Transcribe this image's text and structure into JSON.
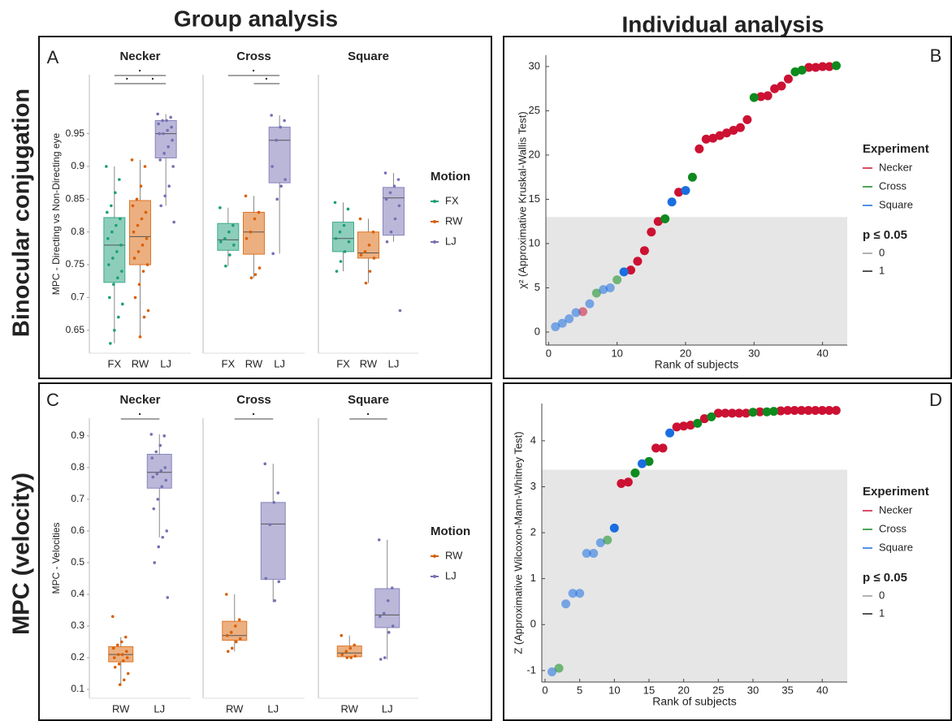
{
  "column_titles": [
    "Group analysis",
    "Individual analysis"
  ],
  "row_titles": [
    "Binocular conjugation",
    "MPC (velocity)"
  ],
  "chart_data": [
    {
      "type": "boxplot",
      "panel_label": "A",
      "ylabel": "MPC - Directing vs Non-Directing eye",
      "ylim": [
        0.615,
        1.04
      ],
      "yticks": [
        0.65,
        0.7,
        0.75,
        0.8,
        0.85,
        0.9,
        0.95
      ],
      "legend_title": "Motion",
      "series": [
        {
          "name": "FX",
          "color": "#1b9e77"
        },
        {
          "name": "RW",
          "color": "#d95f02"
        },
        {
          "name": "LJ",
          "color": "#7570b3"
        }
      ],
      "comparison_label": "·",
      "groups": [
        {
          "title": "Necker",
          "categories": [
            "FX",
            "RW",
            "LJ"
          ],
          "comparisons": [
            [
              "FX",
              "LJ"
            ],
            [
              "FX",
              "RW"
            ],
            [
              "RW",
              "LJ"
            ]
          ],
          "boxes": [
            {
              "whislo": 0.63,
              "q1": 0.723,
              "med": 0.78,
              "q3": 0.822,
              "whishi": 0.9,
              "points": [
                0.9,
                0.88,
                0.86,
                0.84,
                0.83,
                0.82,
                0.81,
                0.8,
                0.79,
                0.78,
                0.77,
                0.76,
                0.75,
                0.74,
                0.73,
                0.72,
                0.7,
                0.69,
                0.67,
                0.65,
                0.63
              ]
            },
            {
              "whislo": 0.64,
              "q1": 0.75,
              "med": 0.793,
              "q3": 0.848,
              "whishi": 0.91,
              "points": [
                0.91,
                0.9,
                0.87,
                0.85,
                0.84,
                0.83,
                0.82,
                0.81,
                0.8,
                0.79,
                0.78,
                0.77,
                0.76,
                0.75,
                0.74,
                0.72,
                0.7,
                0.68,
                0.67,
                0.64
              ]
            },
            {
              "whislo": 0.84,
              "q1": 0.913,
              "med": 0.95,
              "q3": 0.97,
              "whishi": 0.98,
              "points": [
                0.98,
                0.975,
                0.97,
                0.97,
                0.965,
                0.96,
                0.955,
                0.95,
                0.95,
                0.94,
                0.93,
                0.92,
                0.91,
                0.9,
                0.87,
                0.855,
                0.84,
                0.815
              ]
            }
          ]
        },
        {
          "title": "Cross",
          "categories": [
            "FX",
            "RW",
            "LJ"
          ],
          "comparisons": [
            [
              "FX",
              "LJ"
            ],
            [
              "RW",
              "LJ"
            ]
          ],
          "boxes": [
            {
              "whislo": 0.748,
              "q1": 0.772,
              "med": 0.788,
              "q3": 0.813,
              "whishi": 0.837,
              "points": [
                0.837,
                0.81,
                0.8,
                0.79,
                0.785,
                0.78,
                0.765,
                0.748
              ]
            },
            {
              "whislo": 0.73,
              "q1": 0.766,
              "med": 0.8,
              "q3": 0.83,
              "whishi": 0.855,
              "points": [
                0.855,
                0.83,
                0.82,
                0.8,
                0.79,
                0.745,
                0.735,
                0.73
              ]
            },
            {
              "whislo": 0.767,
              "q1": 0.875,
              "med": 0.94,
              "q3": 0.96,
              "whishi": 0.978,
              "points": [
                0.978,
                0.97,
                0.96,
                0.94,
                0.9,
                0.88,
                0.87,
                0.85,
                0.767
              ]
            }
          ]
        },
        {
          "title": "Square",
          "categories": [
            "FX",
            "RW",
            "LJ"
          ],
          "comparisons": [],
          "boxes": [
            {
              "whislo": 0.74,
              "q1": 0.77,
              "med": 0.79,
              "q3": 0.815,
              "whishi": 0.845,
              "points": [
                0.845,
                0.835,
                0.81,
                0.8,
                0.79,
                0.785,
                0.77,
                0.755,
                0.74
              ]
            },
            {
              "whislo": 0.722,
              "q1": 0.76,
              "med": 0.768,
              "q3": 0.8,
              "whishi": 0.82,
              "points": [
                0.82,
                0.8,
                0.78,
                0.77,
                0.765,
                0.76,
                0.74,
                0.722
              ]
            },
            {
              "whislo": 0.785,
              "q1": 0.795,
              "med": 0.852,
              "q3": 0.868,
              "whishi": 0.89,
              "points": [
                0.89,
                0.88,
                0.87,
                0.86,
                0.85,
                0.84,
                0.82,
                0.8,
                0.785,
                0.68
              ]
            }
          ]
        }
      ]
    },
    {
      "type": "scatter",
      "panel_label": "B",
      "xlabel": "Rank of subjects",
      "ylabel": "χ² (Approximative Kruskal-Wallis Test)",
      "xlim": [
        -0.4,
        43.6
      ],
      "xticks": [
        0,
        10,
        20,
        30,
        40
      ],
      "ylim": [
        -1.47,
        31.28
      ],
      "yticks": [
        0,
        5,
        10,
        15,
        20,
        25,
        30
      ],
      "threshold": 13,
      "legend_title": "Experiment",
      "sig_legend_title": "p ≤ 0.05",
      "sig_levels": [
        0,
        1
      ],
      "series": [
        {
          "name": "Necker",
          "color": "#cc1133",
          "x": [
            5,
            12,
            13,
            14,
            15,
            16,
            19,
            22,
            23,
            24,
            25,
            26,
            27,
            28,
            29,
            31,
            32,
            33,
            34,
            35,
            38,
            39,
            40,
            41
          ],
          "values": [
            2.3,
            7.0,
            8.0,
            9.2,
            11.3,
            12.5,
            15.8,
            20.7,
            21.8,
            21.9,
            22.2,
            22.5,
            22.8,
            23.1,
            24.0,
            26.6,
            26.7,
            27.5,
            27.8,
            28.6,
            29.9,
            29.9,
            30.0,
            30.0
          ],
          "significant": [
            0,
            1,
            1,
            1,
            1,
            1,
            1,
            1,
            1,
            1,
            1,
            1,
            1,
            1,
            1,
            1,
            1,
            1,
            1,
            1,
            1,
            1,
            1,
            1
          ]
        },
        {
          "name": "Cross",
          "color": "#0e8a1e",
          "x": [
            7,
            10,
            17,
            21,
            30,
            36,
            37,
            42
          ],
          "values": [
            4.4,
            5.9,
            12.8,
            17.5,
            26.5,
            29.4,
            29.6,
            30.1
          ],
          "significant": [
            0,
            0,
            1,
            1,
            1,
            1,
            1,
            1
          ]
        },
        {
          "name": "Square",
          "color": "#1a6ee0",
          "x": [
            1,
            2,
            3,
            4,
            6,
            8,
            9,
            11,
            18,
            20
          ],
          "values": [
            0.6,
            1.0,
            1.5,
            2.2,
            3.2,
            4.8,
            5.0,
            6.8,
            14.7,
            16.0
          ],
          "significant": [
            0,
            0,
            0,
            0,
            0,
            0,
            0,
            1,
            1,
            1
          ]
        }
      ]
    },
    {
      "type": "boxplot",
      "panel_label": "C",
      "ylabel": "MPC - Velocities",
      "ylim": [
        0.072,
        0.956
      ],
      "yticks": [
        0.1,
        0.2,
        0.3,
        0.4,
        0.5,
        0.6,
        0.7,
        0.8,
        0.9
      ],
      "legend_title": "Motion",
      "series": [
        {
          "name": "RW",
          "color": "#d95f02"
        },
        {
          "name": "LJ",
          "color": "#7570b3"
        }
      ],
      "comparison_label": "·",
      "groups": [
        {
          "title": "Necker",
          "categories": [
            "RW",
            "LJ"
          ],
          "comparisons": [
            [
              "RW",
              "LJ"
            ]
          ],
          "boxes": [
            {
              "whislo": 0.115,
              "q1": 0.187,
              "med": 0.21,
              "q3": 0.235,
              "whishi": 0.265,
              "points": [
                0.33,
                0.265,
                0.25,
                0.24,
                0.23,
                0.22,
                0.21,
                0.21,
                0.2,
                0.2,
                0.19,
                0.18,
                0.17,
                0.15,
                0.13,
                0.115
              ]
            },
            {
              "whislo": 0.58,
              "q1": 0.735,
              "med": 0.785,
              "q3": 0.842,
              "whishi": 0.905,
              "points": [
                0.905,
                0.9,
                0.87,
                0.85,
                0.83,
                0.8,
                0.79,
                0.78,
                0.77,
                0.76,
                0.74,
                0.7,
                0.67,
                0.6,
                0.58,
                0.55,
                0.5,
                0.39
              ]
            }
          ]
        },
        {
          "title": "Cross",
          "categories": [
            "RW",
            "LJ"
          ],
          "comparisons": [
            [
              "RW",
              "LJ"
            ]
          ],
          "boxes": [
            {
              "whislo": 0.22,
              "q1": 0.255,
              "med": 0.27,
              "q3": 0.315,
              "whishi": 0.4,
              "points": [
                0.4,
                0.32,
                0.3,
                0.28,
                0.27,
                0.26,
                0.25,
                0.23,
                0.22
              ]
            },
            {
              "whislo": 0.375,
              "q1": 0.447,
              "med": 0.622,
              "q3": 0.69,
              "whishi": 0.812,
              "points": [
                0.812,
                0.72,
                0.69,
                0.62,
                0.45,
                0.44,
                0.38
              ]
            }
          ]
        },
        {
          "title": "Square",
          "categories": [
            "RW",
            "LJ"
          ],
          "comparisons": [
            [
              "RW",
              "LJ"
            ]
          ],
          "boxes": [
            {
              "whislo": 0.2,
              "q1": 0.203,
              "med": 0.215,
              "q3": 0.237,
              "whishi": 0.27,
              "points": [
                0.27,
                0.24,
                0.23,
                0.22,
                0.21,
                0.205,
                0.2,
                0.2
              ]
            },
            {
              "whislo": 0.195,
              "q1": 0.295,
              "med": 0.335,
              "q3": 0.418,
              "whishi": 0.572,
              "points": [
                0.572,
                0.42,
                0.38,
                0.34,
                0.33,
                0.3,
                0.28,
                0.2,
                0.195
              ]
            }
          ]
        }
      ]
    },
    {
      "type": "scatter",
      "panel_label": "D",
      "xlabel": "Rank of subjects",
      "ylabel": "Z (Approximative Wilcoxon-Mann-Whitney Test)",
      "xlim": [
        -0.47,
        43.6
      ],
      "xticks": [
        0,
        5,
        10,
        15,
        20,
        25,
        30,
        35,
        40
      ],
      "ylim": [
        -1.25,
        4.81
      ],
      "yticks": [
        -1,
        0,
        1,
        2,
        3,
        4
      ],
      "threshold": 3.37,
      "legend_title": "Experiment",
      "sig_legend_title": "p ≤ 0.05",
      "sig_levels": [
        0,
        1
      ],
      "series": [
        {
          "name": "Necker",
          "color": "#cc1133",
          "x": [
            11,
            12,
            16,
            17,
            19,
            20,
            21,
            23,
            25,
            26,
            27,
            28,
            29,
            31,
            34,
            35,
            36,
            37,
            38,
            39,
            40,
            41,
            42
          ],
          "values": [
            3.07,
            3.1,
            3.84,
            3.84,
            4.3,
            4.32,
            4.34,
            4.48,
            4.6,
            4.6,
            4.6,
            4.6,
            4.6,
            4.63,
            4.65,
            4.66,
            4.66,
            4.66,
            4.66,
            4.66,
            4.66,
            4.66,
            4.66
          ],
          "significant": [
            1,
            1,
            1,
            1,
            1,
            1,
            1,
            1,
            1,
            1,
            1,
            1,
            1,
            1,
            1,
            1,
            1,
            1,
            1,
            1,
            1,
            1,
            1
          ]
        },
        {
          "name": "Cross",
          "color": "#0e8a1e",
          "x": [
            2,
            9,
            13,
            15,
            22,
            24,
            30,
            32,
            33
          ],
          "values": [
            -0.95,
            1.84,
            3.3,
            3.55,
            4.38,
            4.52,
            4.62,
            4.63,
            4.64
          ],
          "significant": [
            0,
            0,
            1,
            1,
            1,
            1,
            1,
            1,
            1
          ]
        },
        {
          "name": "Square",
          "color": "#1a6ee0",
          "x": [
            1,
            3,
            4,
            5,
            6,
            7,
            8,
            10,
            14,
            18
          ],
          "values": [
            -1.03,
            0.45,
            0.68,
            0.68,
            1.55,
            1.55,
            1.78,
            2.1,
            3.5,
            4.17
          ],
          "significant": [
            0,
            0,
            0,
            0,
            0,
            0,
            0,
            1,
            1,
            1
          ]
        }
      ]
    }
  ]
}
